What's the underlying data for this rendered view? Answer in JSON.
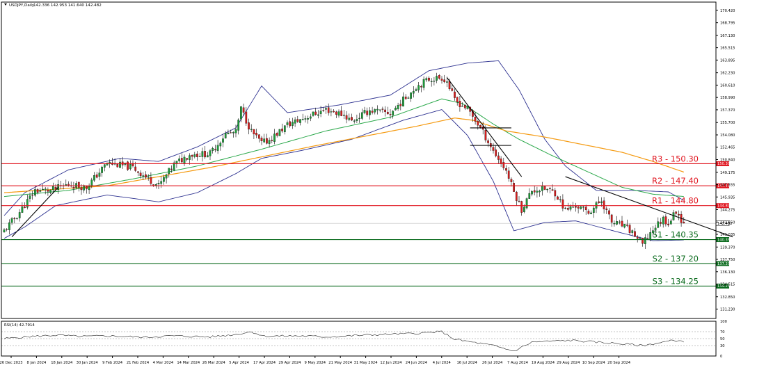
{
  "chart_data": {
    "type": "candlestick",
    "instrument": {
      "symbol": "USDJPY,Daily",
      "ohlc": [
        "142.336",
        "142.953",
        "141.640",
        "142.482"
      ]
    },
    "y_range": [
      130.0,
      171.5
    ],
    "y_ticks": [
      "170.420",
      "168.795",
      "167.130",
      "165.515",
      "163.895",
      "162.230",
      "160.610",
      "158.990",
      "157.370",
      "155.700",
      "154.080",
      "152.465",
      "150.840",
      "149.175",
      "147.555",
      "145.935",
      "144.275",
      "142.650",
      "141.035",
      "139.370",
      "137.750",
      "136.130",
      "134.515",
      "132.850",
      "131.230"
    ],
    "x_labels": [
      "26 Dec 2023",
      "8 Jan 2024",
      "18 Jan 2024",
      "30 Jan 2024",
      "9 Feb 2024",
      "21 Feb 2024",
      "4 Mar 2024",
      "14 Mar 2024",
      "26 Mar 2024",
      "5 Apr 2024",
      "17 Apr 2024",
      "29 Apr 2024",
      "9 May 2024",
      "21 May 2024",
      "31 May 2024",
      "12 Jun 2024",
      "24 Jun 2024",
      "4 Jul 2024",
      "16 Jul 2024",
      "26 Jul 2024",
      "7 Aug 2024",
      "19 Aug 2024",
      "29 Aug 2024",
      "10 Sep 2024",
      "20 Sep 2024"
    ],
    "levels": [
      {
        "label": "R3 - 150.30",
        "value": 150.3,
        "tag": "150.300",
        "type": "resistance"
      },
      {
        "label": "R2 - 147.40",
        "value": 147.4,
        "tag": "147.400",
        "type": "resistance"
      },
      {
        "label": "R1 - 144.80",
        "value": 144.8,
        "tag": "144.800",
        "type": "resistance"
      },
      {
        "label": "S1 - 140.35",
        "value": 140.35,
        "tag": "140.350",
        "type": "support"
      },
      {
        "label": "S2 - 137.20",
        "value": 137.2,
        "tag": "137.200",
        "type": "support"
      },
      {
        "label": "S3 - 134.25",
        "value": 134.25,
        "tag": "134.250",
        "type": "support"
      }
    ],
    "current_price": {
      "value": 142.482,
      "tag": "142.482"
    },
    "close_anchors": [
      [
        0,
        141.5
      ],
      [
        5,
        143.5
      ],
      [
        12,
        146.8
      ],
      [
        18,
        146.8
      ],
      [
        25,
        147.6
      ],
      [
        32,
        147.2
      ],
      [
        40,
        150.4
      ],
      [
        50,
        149.8
      ],
      [
        56,
        148.3
      ],
      [
        60,
        147.4
      ],
      [
        66,
        150.2
      ],
      [
        72,
        151.5
      ],
      [
        80,
        151.6
      ],
      [
        86,
        154.2
      ],
      [
        90,
        154.4
      ],
      [
        92,
        157.5
      ],
      [
        96,
        154.5
      ],
      [
        100,
        153.0
      ],
      [
        103,
        153.4
      ],
      [
        110,
        155.4
      ],
      [
        118,
        156.5
      ],
      [
        125,
        157.4
      ],
      [
        132,
        156.7
      ],
      [
        135,
        155.9
      ],
      [
        142,
        157.3
      ],
      [
        150,
        156.9
      ],
      [
        160,
        160.4
      ],
      [
        165,
        161.4
      ],
      [
        170,
        161.6
      ],
      [
        172,
        161.1
      ],
      [
        175,
        158.6
      ],
      [
        180,
        157.5
      ],
      [
        185,
        155.0
      ],
      [
        190,
        152.0
      ],
      [
        195,
        149.4
      ],
      [
        198,
        146.6
      ],
      [
        201,
        144.3
      ],
      [
        205,
        146.8
      ],
      [
        210,
        147.0
      ],
      [
        214,
        146.5
      ],
      [
        218,
        144.2
      ],
      [
        222,
        144.8
      ],
      [
        227,
        143.9
      ],
      [
        232,
        145.5
      ],
      [
        236,
        142.6
      ],
      [
        240,
        142.2
      ],
      [
        244,
        141.3
      ],
      [
        248,
        139.7
      ],
      [
        252,
        141.7
      ],
      [
        256,
        143.1
      ],
      [
        258,
        142.5
      ],
      [
        261,
        144.1
      ],
      [
        263,
        143.0
      ],
      [
        264,
        142.48
      ]
    ],
    "ma_orange": {
      "name": "",
      "values": [
        [
          0,
          146.5
        ],
        [
          40,
          147.4
        ],
        [
          80,
          149.8
        ],
        [
          120,
          152.6
        ],
        [
          160,
          155.2
        ],
        [
          175,
          156.3
        ],
        [
          182,
          156.0
        ],
        [
          195,
          154.6
        ],
        [
          210,
          153.8
        ],
        [
          225,
          152.8
        ],
        [
          240,
          151.8
        ],
        [
          252,
          150.6
        ],
        [
          264,
          149.2
        ]
      ]
    },
    "ma_green": {
      "name": "",
      "values": [
        [
          0,
          146.0
        ],
        [
          25,
          146.8
        ],
        [
          50,
          148.3
        ],
        [
          75,
          150.0
        ],
        [
          100,
          152.2
        ],
        [
          125,
          154.6
        ],
        [
          150,
          156.4
        ],
        [
          170,
          158.8
        ],
        [
          178,
          158.2
        ],
        [
          190,
          155.5
        ],
        [
          200,
          153.5
        ],
        [
          212,
          151.5
        ],
        [
          225,
          149.5
        ],
        [
          240,
          147.2
        ],
        [
          252,
          146.3
        ],
        [
          264,
          146.0
        ]
      ]
    },
    "bb_upper": {
      "name": "",
      "values": [
        [
          0,
          143.5
        ],
        [
          8,
          146.5
        ],
        [
          25,
          149.5
        ],
        [
          45,
          151.0
        ],
        [
          60,
          150.6
        ],
        [
          75,
          152.5
        ],
        [
          90,
          155.0
        ],
        [
          100,
          160.5
        ],
        [
          110,
          157.0
        ],
        [
          130,
          158.0
        ],
        [
          150,
          159.3
        ],
        [
          165,
          162.5
        ],
        [
          180,
          163.5
        ],
        [
          192,
          163.8
        ],
        [
          200,
          160.0
        ],
        [
          210,
          153.5
        ],
        [
          218,
          150.0
        ],
        [
          230,
          146.8
        ],
        [
          245,
          146.8
        ],
        [
          258,
          146.6
        ],
        [
          264,
          145.5
        ]
      ]
    },
    "bb_lower": {
      "name": "",
      "values": [
        [
          0,
          140.5
        ],
        [
          8,
          142.0
        ],
        [
          20,
          144.8
        ],
        [
          40,
          146.2
        ],
        [
          60,
          145.3
        ],
        [
          75,
          146.5
        ],
        [
          90,
          149.0
        ],
        [
          100,
          151.0
        ],
        [
          115,
          152.0
        ],
        [
          135,
          153.5
        ],
        [
          155,
          156.0
        ],
        [
          170,
          157.4
        ],
        [
          180,
          154.0
        ],
        [
          190,
          148.0
        ],
        [
          198,
          141.5
        ],
        [
          210,
          142.6
        ],
        [
          222,
          142.8
        ],
        [
          240,
          141.2
        ],
        [
          252,
          140.2
        ],
        [
          264,
          140.3
        ]
      ]
    },
    "trendlines": [
      {
        "from": [
          3,
          140.7
        ],
        "to": [
          21,
          147.2
        ]
      },
      {
        "from": [
          172,
          161.6
        ],
        "to": [
          201,
          148.6
        ]
      },
      {
        "from": [
          218,
          148.6
        ],
        "to": [
          283,
          140.7
        ]
      }
    ],
    "boxes": [
      {
        "from": [
          181,
          155.0
        ],
        "to": [
          197,
          155.0
        ]
      },
      {
        "from": [
          181,
          152.7
        ],
        "to": [
          197,
          152.7
        ]
      }
    ],
    "rsi": {
      "label": "RSI(14) 42.7914",
      "range": [
        0,
        100
      ],
      "levels": [
        "100",
        "70",
        "50",
        "30",
        "0"
      ],
      "anchors": [
        [
          0,
          50
        ],
        [
          10,
          56
        ],
        [
          20,
          60
        ],
        [
          30,
          56
        ],
        [
          40,
          58
        ],
        [
          55,
          54
        ],
        [
          65,
          58
        ],
        [
          80,
          55
        ],
        [
          90,
          62
        ],
        [
          96,
          70
        ],
        [
          101,
          57
        ],
        [
          115,
          58
        ],
        [
          125,
          55
        ],
        [
          140,
          60
        ],
        [
          160,
          65
        ],
        [
          170,
          70
        ],
        [
          175,
          48
        ],
        [
          190,
          30
        ],
        [
          198,
          14
        ],
        [
          205,
          40
        ],
        [
          220,
          45
        ],
        [
          230,
          40
        ],
        [
          240,
          35
        ],
        [
          248,
          30
        ],
        [
          256,
          40
        ],
        [
          260,
          45
        ],
        [
          264,
          42.8
        ]
      ]
    }
  }
}
